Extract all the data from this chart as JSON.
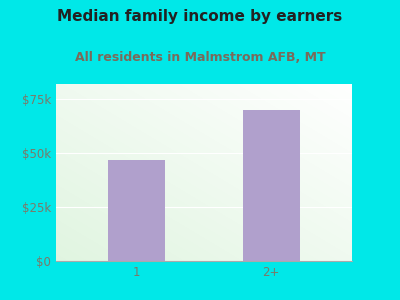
{
  "title": "Median family income by earners",
  "subtitle": "All residents in Malmstrom AFB, MT",
  "categories": [
    "1",
    "2+"
  ],
  "values": [
    47000,
    70000
  ],
  "bar_color": "#b0a0cc",
  "outer_bg_color": "#00e8e8",
  "title_color": "#222222",
  "subtitle_color": "#7a6a5a",
  "tick_color": "#7a7a6a",
  "ytick_labels": [
    "$0",
    "$25k",
    "$50k",
    "$75k"
  ],
  "ytick_values": [
    0,
    25000,
    50000,
    75000
  ],
  "ylim": [
    0,
    82000
  ],
  "title_fontsize": 11,
  "subtitle_fontsize": 9,
  "tick_fontsize": 8.5,
  "grid_color": "#cccccc"
}
